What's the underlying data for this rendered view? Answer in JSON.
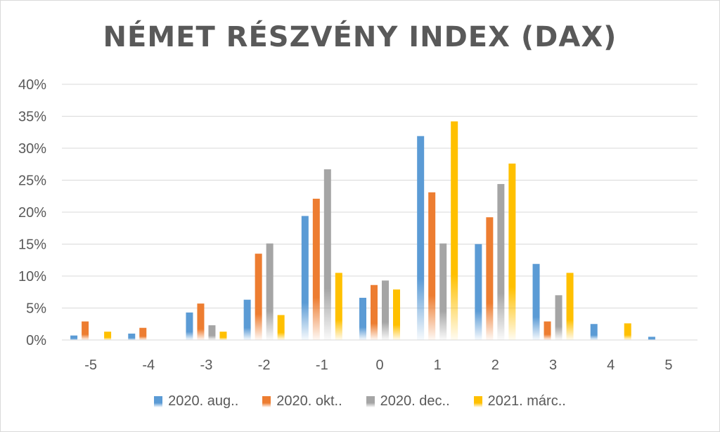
{
  "chart_data": {
    "type": "bar",
    "title": "NÉMET RÉSZVÉNY INDEX (DAX)",
    "categories": [
      "-5",
      "-4",
      "-3",
      "-2",
      "-1",
      "0",
      "1",
      "2",
      "3",
      "4",
      "5"
    ],
    "ylim": [
      0,
      40
    ],
    "yticks": [
      "0%",
      "5%",
      "10%",
      "15%",
      "20%",
      "25%",
      "30%",
      "35%",
      "40%"
    ],
    "grid": true,
    "legend_position": "bottom",
    "series": [
      {
        "name": "2020. aug..",
        "color": "#5b9bd5",
        "values": [
          0.7,
          1.0,
          4.3,
          6.3,
          19.4,
          6.6,
          31.9,
          15.0,
          11.9,
          2.5,
          0.5
        ]
      },
      {
        "name": "2020. okt..",
        "color": "#ed7d31",
        "values": [
          2.9,
          1.9,
          5.7,
          13.5,
          22.1,
          8.6,
          23.1,
          19.2,
          2.9,
          0.0,
          0.0
        ]
      },
      {
        "name": "2020. dec..",
        "color": "#a5a5a5",
        "values": [
          0.0,
          0.0,
          2.3,
          15.1,
          26.7,
          9.3,
          15.1,
          24.4,
          7.0,
          0.0,
          0.0
        ]
      },
      {
        "name": "2021. márc..",
        "color": "#ffc000",
        "values": [
          1.3,
          0.0,
          1.3,
          3.9,
          10.5,
          7.9,
          34.2,
          27.6,
          10.5,
          2.6,
          0.0
        ]
      }
    ]
  }
}
